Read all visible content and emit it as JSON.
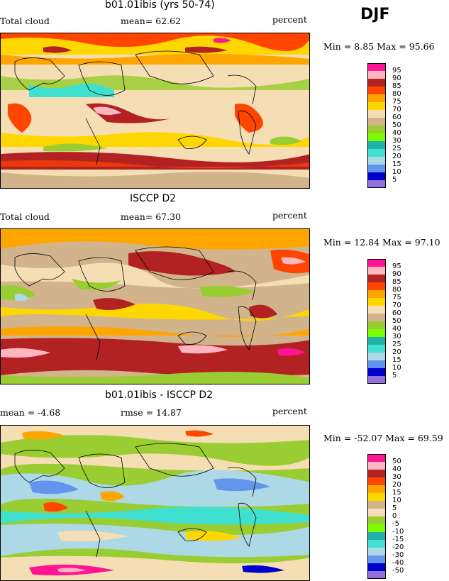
{
  "season": "DJF",
  "panels": [
    {
      "title": "b01.01ibis (yrs 50-74)",
      "left_text": "Total cloud",
      "mid_text": "mean=  62.62",
      "right_text": "percent",
      "minmax": "Min =    8.85 Max =   95.66",
      "levels": [
        "95",
        "90",
        "85",
        "80",
        "75",
        "70",
        "60",
        "50",
        "40",
        "30",
        "25",
        "20",
        "15",
        "10",
        "5"
      ],
      "colors": [
        "#ff1493",
        "#ffb6c1",
        "#b22222",
        "#ff4500",
        "#ffa500",
        "#ffd700",
        "#f5deb3",
        "#d2b48c",
        "#9acd32",
        "#7cfc00",
        "#20b2aa",
        "#40e0d0",
        "#add8e6",
        "#6495ed",
        "#0000cd",
        "#9370db"
      ]
    },
    {
      "title": "ISCCP D2",
      "left_text": "Total cloud",
      "mid_text": "mean=  67.30",
      "right_text": "percent",
      "minmax": "Min =   12.84 Max =   97.10",
      "levels": [
        "95",
        "90",
        "85",
        "80",
        "75",
        "70",
        "60",
        "50",
        "40",
        "30",
        "25",
        "20",
        "15",
        "10",
        "5"
      ],
      "colors": [
        "#ff1493",
        "#ffb6c1",
        "#b22222",
        "#ff4500",
        "#ffa500",
        "#ffd700",
        "#f5deb3",
        "#d2b48c",
        "#9acd32",
        "#7cfc00",
        "#20b2aa",
        "#40e0d0",
        "#add8e6",
        "#6495ed",
        "#0000cd",
        "#9370db"
      ]
    },
    {
      "title": "b01.01ibis - ISCCP D2",
      "left_text": "mean =   -4.68",
      "mid_text": "rmse =  14.87",
      "right_text": "percent",
      "minmax": "Min = -52.07 Max =   69.59",
      "levels": [
        "50",
        "40",
        "30",
        "20",
        "15",
        "10",
        "5",
        "0",
        "-5",
        "-10",
        "-15",
        "-20",
        "-30",
        "-40",
        "-50"
      ],
      "colors": [
        "#ff1493",
        "#ffb6c1",
        "#b22222",
        "#ff4500",
        "#ffa500",
        "#ffd700",
        "#d2b48c",
        "#f5deb3",
        "#9acd32",
        "#7cfc00",
        "#20b2aa",
        "#40e0d0",
        "#add8e6",
        "#6495ed",
        "#0000cd",
        "#9370db"
      ]
    }
  ]
}
